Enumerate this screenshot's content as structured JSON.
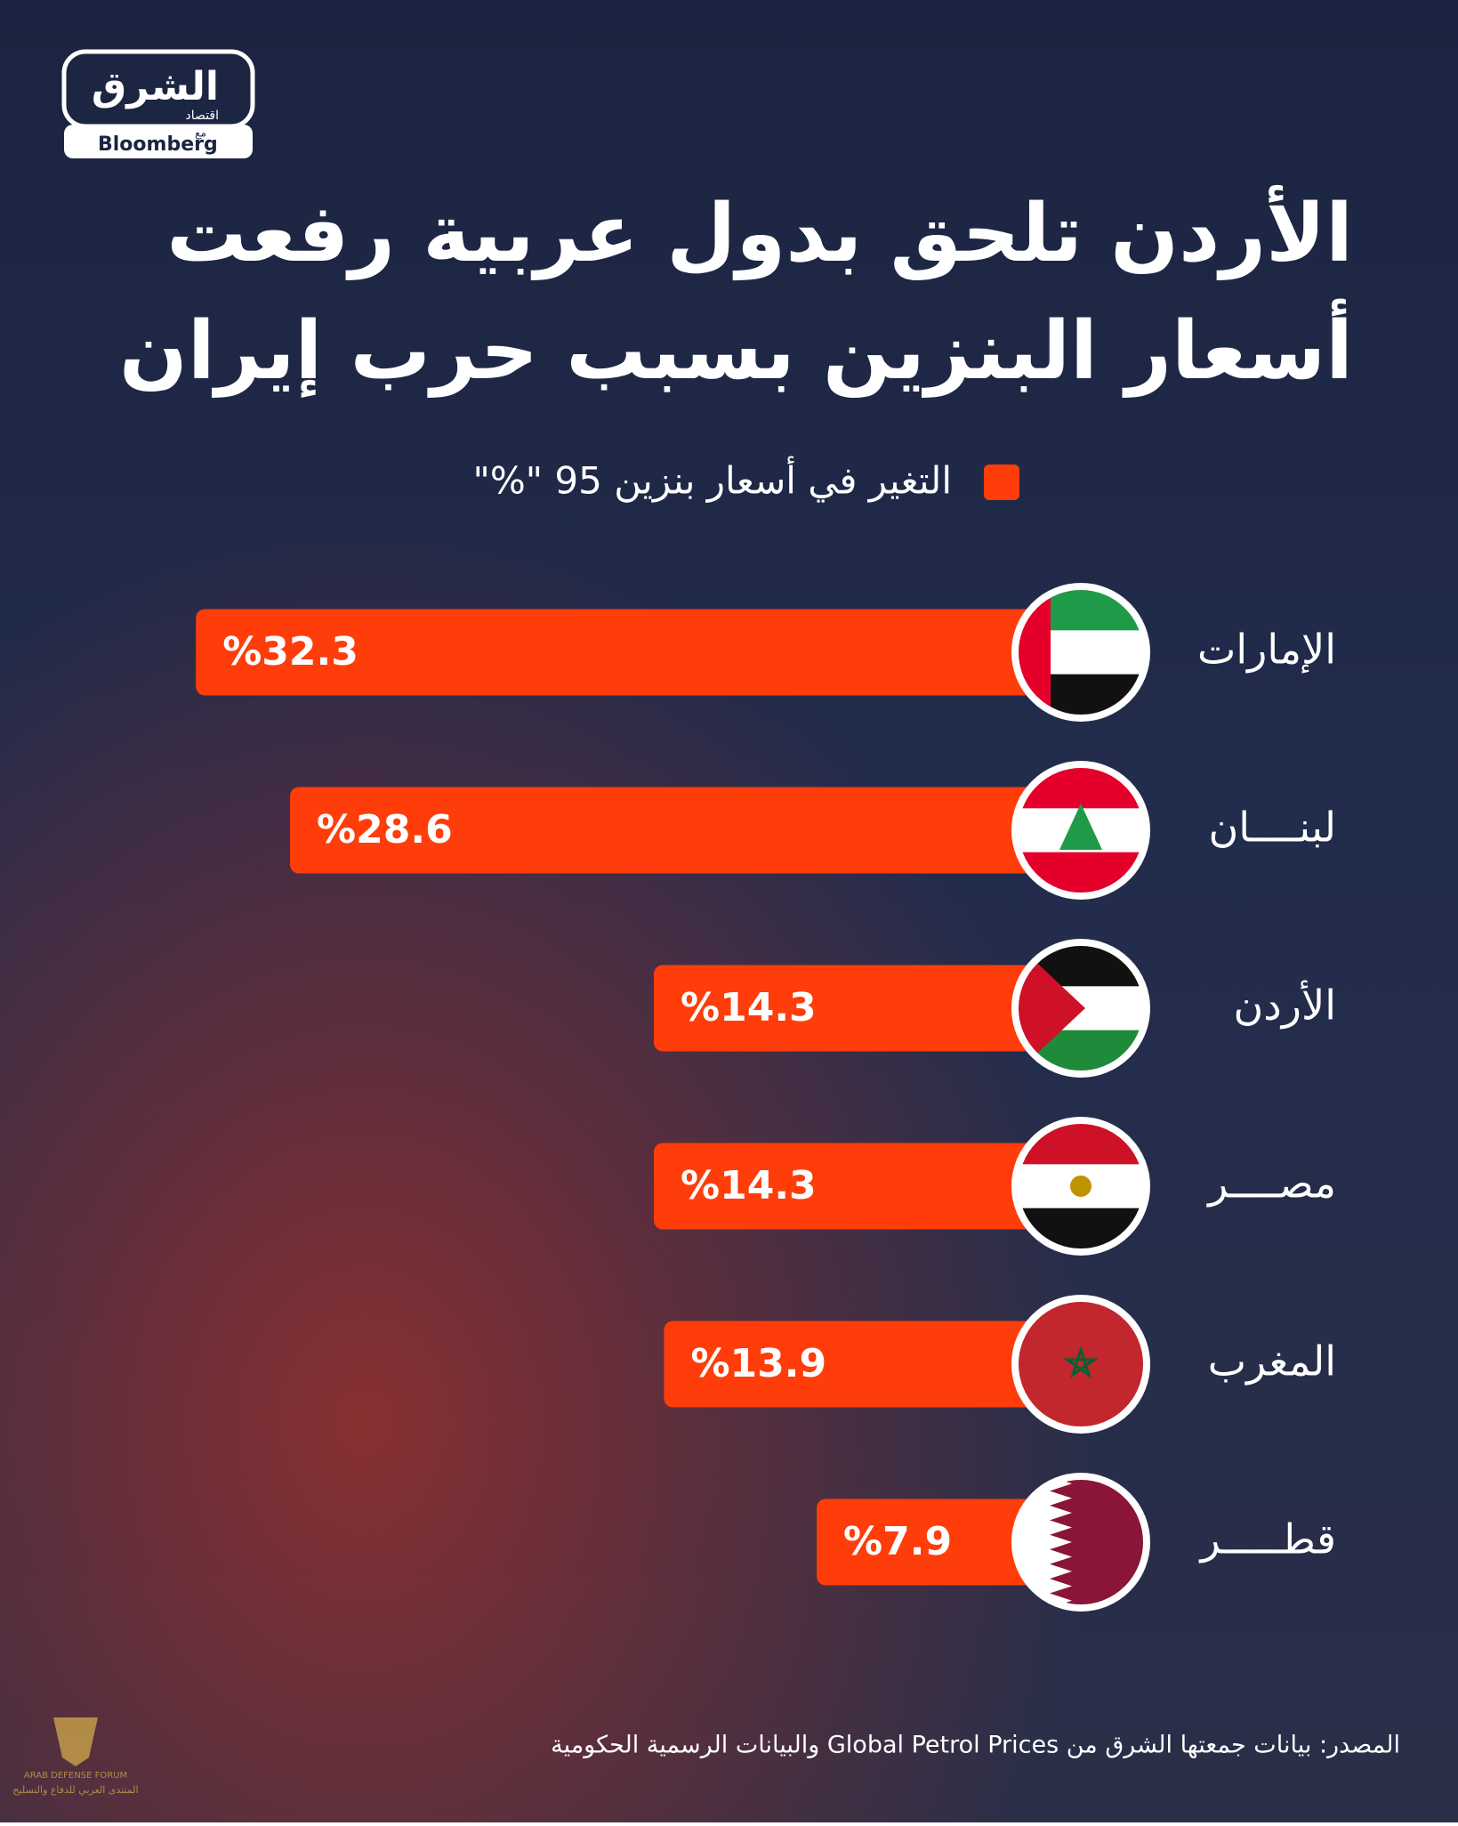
{
  "logo": {
    "name": "الشرق",
    "sub": "اقتصاد",
    "with": "مع",
    "partner": "Bloomberg"
  },
  "chart_data": {
    "type": "bar",
    "orientation": "horizontal",
    "title": [
      "الأردن تلحق بدول عربية رفعت",
      "أسعار البنزين بسبب حرب إيران"
    ],
    "series": [
      {
        "name": "التغير في أسعار بنزين 95 \"%\"",
        "color": "#ff3d0a",
        "values": [
          32.3,
          28.6,
          14.3,
          14.3,
          13.9,
          7.9
        ],
        "value_labels": [
          "%32.3",
          "%28.6",
          "%14.3",
          "%14.3",
          "%13.9",
          "%7.9"
        ]
      }
    ],
    "categories": [
      "الإمارات",
      "لبنــــان",
      "الأردن",
      "مصــــر",
      "المغرب",
      "قطـــــر"
    ],
    "source": "المصدر: بيانات جمعتها الشرق من Global Petrol Prices والبيانات الرسمية الحكومية"
  },
  "watermark": {
    "name": "ARAB DEFENSE FORUM",
    "sub": "المنتدى العربي للدفاع والتسليح"
  }
}
